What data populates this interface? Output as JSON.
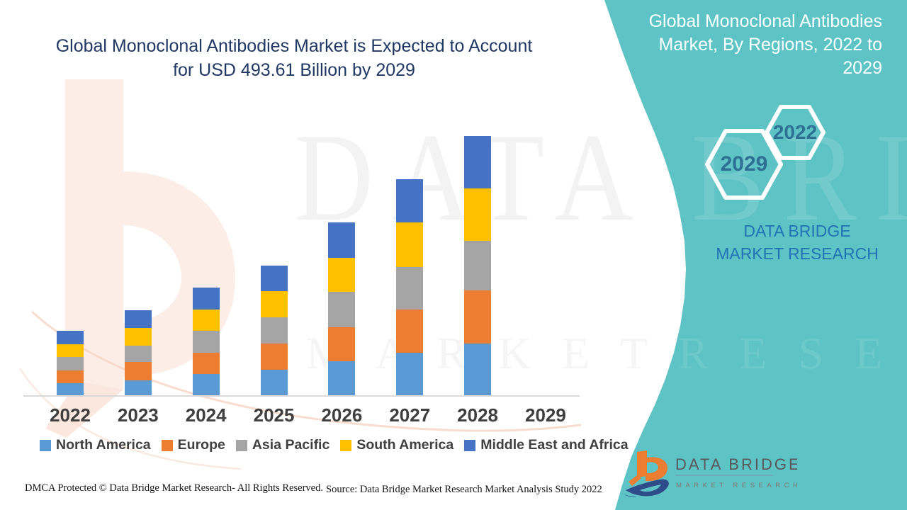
{
  "title": {
    "line1": "Global Monoclonal Antibodies Market is Expected to Account",
    "line2": "for USD 493.61 Billion by 2029"
  },
  "panel": {
    "heading": "Global Monoclonal Antibodies Market, By Regions, 2022 to 2029",
    "hexagon_back": "2029",
    "hexagon_front": "2022",
    "brand_text": "DATA BRIDGE MARKET RESEARCH",
    "background_color": "#5EC3C5",
    "heading_color": "#FFFFFF",
    "brand_text_color": "#2173B4",
    "hex_year_color": "#2D7093"
  },
  "logo": {
    "name": "DATA BRIDGE",
    "sub": "MARKET RESEARCH",
    "mark_orange": "#ED7D31",
    "mark_blue": "#2F4C8A"
  },
  "watermarks": {
    "big": "DATA BRIDGE",
    "row2": "M A R K E T    R E S E A R C H"
  },
  "footer": {
    "dmca": "DMCA Protected © Data Bridge Market Research- All Rights Reserved.",
    "source": "Source: Data Bridge Market Research Market Analysis Study 2022"
  },
  "title_color": "#1F3864",
  "chart_data": {
    "type": "bar",
    "stacked": true,
    "title": "Global Monoclonal Antibodies Market, By Regions, 2022 to 2029",
    "categories": [
      "2022",
      "2023",
      "2024",
      "2025",
      "2026",
      "2027",
      "2028",
      "2029"
    ],
    "series": [
      {
        "name": "North America",
        "color": "#5B9BD5",
        "values": [
          18,
          22,
          31,
          37,
          49,
          61,
          74,
          0
        ]
      },
      {
        "name": "Europe",
        "color": "#ED7D31",
        "values": [
          18,
          26,
          30,
          37,
          48,
          61,
          75,
          0
        ]
      },
      {
        "name": "Asia Pacific",
        "color": "#A5A5A5",
        "values": [
          19,
          23,
          31,
          37,
          50,
          60,
          70,
          0
        ]
      },
      {
        "name": "South America",
        "color": "#FFC000",
        "values": [
          18,
          25,
          30,
          37,
          48,
          63,
          74,
          0
        ]
      },
      {
        "name": "Middle East and Africa",
        "color": "#4472C4",
        "values": [
          19,
          25,
          31,
          36,
          50,
          61,
          74,
          0
        ]
      }
    ],
    "unit": "relative stacked height in screen pixels (no value axis shown in source figure)",
    "xlabel": "",
    "ylabel": "",
    "y_axis_visible": false,
    "gridlines": false,
    "legend_position": "bottom",
    "note": "2029 column is empty in the source image; market value cited only in title as USD 493.61 Billion by 2029"
  }
}
